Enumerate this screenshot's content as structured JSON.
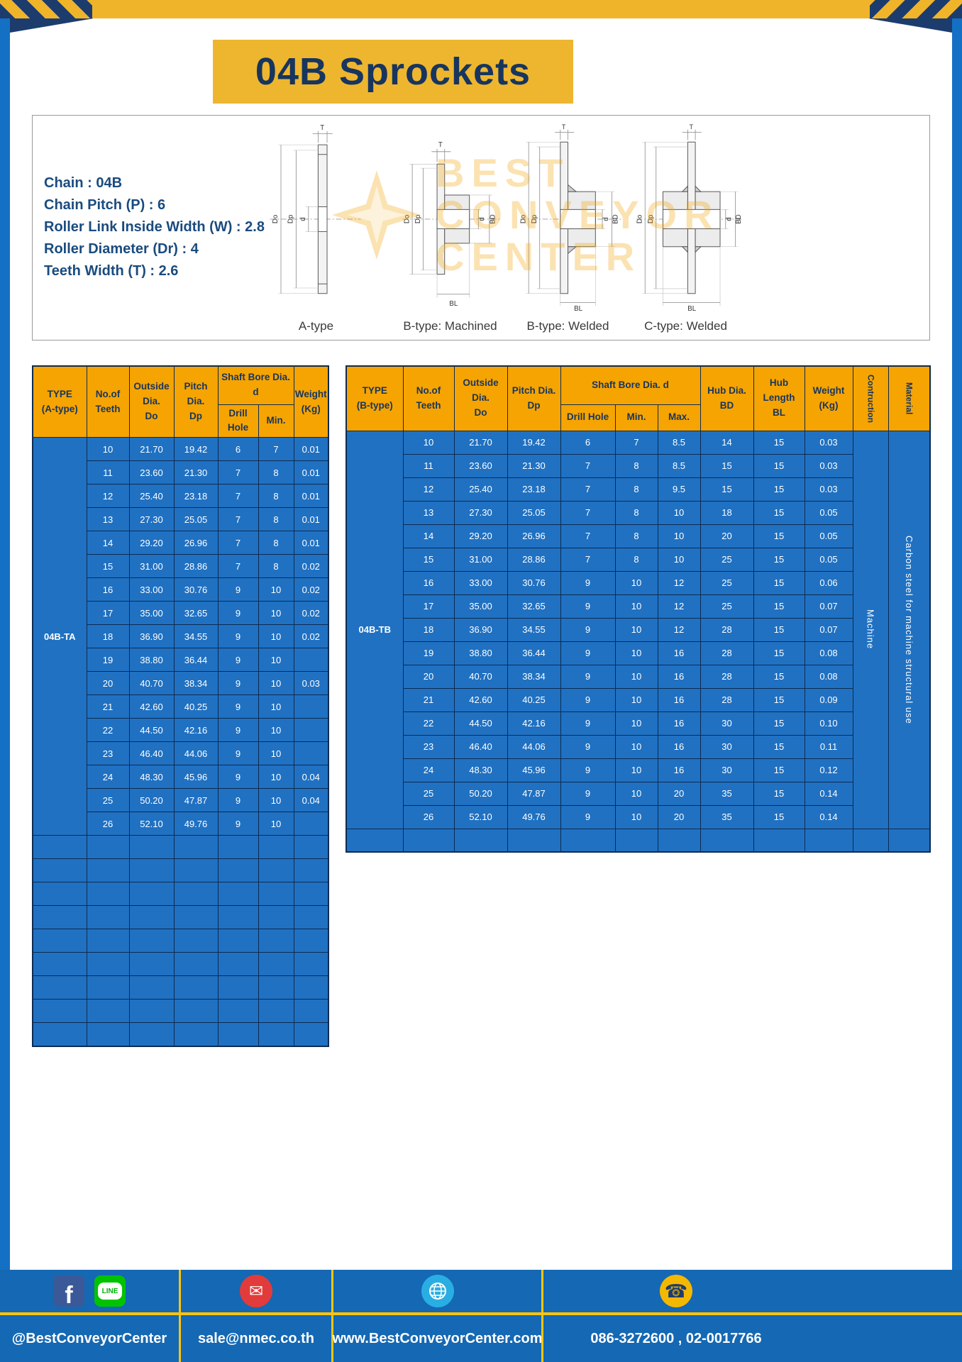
{
  "title": "04B Sprockets",
  "specs": {
    "lines": [
      "Chain : 04B",
      "Chain Pitch (P) : 6",
      "Roller Link Inside Width (W) : 2.8",
      "Roller Diameter (Dr) : 4",
      "Teeth Width (T) : 2.6"
    ]
  },
  "diagrams": {
    "labels": [
      "A-type",
      "B-type: Machined",
      "B-type: Welded",
      "C-type: Welded"
    ],
    "dims": {
      "t": "T",
      "do": "Do",
      "dp": "Dp",
      "d": "d",
      "bd": "BD",
      "bl": "BL"
    }
  },
  "watermark": {
    "line1": "BEST",
    "line2": "CONVEYOR",
    "line3": "CENTER"
  },
  "table_a": {
    "type_header": "TYPE\n(A-type)",
    "type_value": "04B-TA",
    "col_teeth": "No.of\nTeeth",
    "col_outside": "Outside\nDia.\nDo",
    "col_pitch": "Pitch Dia.\nDp",
    "col_shaft_group": "Shaft Bore Dia. d",
    "col_drill": "Drill Hole",
    "col_min": "Min.",
    "col_weight": "Weight\n(Kg)",
    "rows": [
      [
        "10",
        "21.70",
        "19.42",
        "6",
        "7",
        "0.01"
      ],
      [
        "11",
        "23.60",
        "21.30",
        "7",
        "8",
        "0.01"
      ],
      [
        "12",
        "25.40",
        "23.18",
        "7",
        "8",
        "0.01"
      ],
      [
        "13",
        "27.30",
        "25.05",
        "7",
        "8",
        "0.01"
      ],
      [
        "14",
        "29.20",
        "26.96",
        "7",
        "8",
        "0.01"
      ],
      [
        "15",
        "31.00",
        "28.86",
        "7",
        "8",
        "0.02"
      ],
      [
        "16",
        "33.00",
        "30.76",
        "9",
        "10",
        "0.02"
      ],
      [
        "17",
        "35.00",
        "32.65",
        "9",
        "10",
        "0.02"
      ],
      [
        "18",
        "36.90",
        "34.55",
        "9",
        "10",
        "0.02"
      ],
      [
        "19",
        "38.80",
        "36.44",
        "9",
        "10",
        ""
      ],
      [
        "20",
        "40.70",
        "38.34",
        "9",
        "10",
        "0.03"
      ],
      [
        "21",
        "42.60",
        "40.25",
        "9",
        "10",
        ""
      ],
      [
        "22",
        "44.50",
        "42.16",
        "9",
        "10",
        ""
      ],
      [
        "23",
        "46.40",
        "44.06",
        "9",
        "10",
        ""
      ],
      [
        "24",
        "48.30",
        "45.96",
        "9",
        "10",
        "0.04"
      ],
      [
        "25",
        "50.20",
        "47.87",
        "9",
        "10",
        "0.04"
      ],
      [
        "26",
        "52.10",
        "49.76",
        "9",
        "10",
        ""
      ]
    ],
    "empty_rows": 9
  },
  "table_b": {
    "type_header": "TYPE\n(B-type)",
    "type_value": "04B-TB",
    "col_teeth": "No.of\nTeeth",
    "col_outside": "Outside\nDia.\nDo",
    "col_pitch": "Pitch Dia.\nDp",
    "col_shaft_group": "Shaft Bore Dia. d",
    "col_drill": "Drill Hole",
    "col_min": "Min.",
    "col_max": "Max.",
    "col_hub_dia": "Hub Dia.\nBD",
    "col_hub_len": "Hub\nLength\nBL",
    "col_weight": "Weight\n(Kg)",
    "col_construction": "Contruction",
    "col_material": "Material",
    "construction_value": "Machine",
    "material_value": "Carbon steel for machine structural use",
    "rows": [
      [
        "10",
        "21.70",
        "19.42",
        "6",
        "7",
        "8.5",
        "14",
        "15",
        "0.03"
      ],
      [
        "11",
        "23.60",
        "21.30",
        "7",
        "8",
        "8.5",
        "15",
        "15",
        "0.03"
      ],
      [
        "12",
        "25.40",
        "23.18",
        "7",
        "8",
        "9.5",
        "15",
        "15",
        "0.03"
      ],
      [
        "13",
        "27.30",
        "25.05",
        "7",
        "8",
        "10",
        "18",
        "15",
        "0.05"
      ],
      [
        "14",
        "29.20",
        "26.96",
        "7",
        "8",
        "10",
        "20",
        "15",
        "0.05"
      ],
      [
        "15",
        "31.00",
        "28.86",
        "7",
        "8",
        "10",
        "25",
        "15",
        "0.05"
      ],
      [
        "16",
        "33.00",
        "30.76",
        "9",
        "10",
        "12",
        "25",
        "15",
        "0.06"
      ],
      [
        "17",
        "35.00",
        "32.65",
        "9",
        "10",
        "12",
        "25",
        "15",
        "0.07"
      ],
      [
        "18",
        "36.90",
        "34.55",
        "9",
        "10",
        "12",
        "28",
        "15",
        "0.07"
      ],
      [
        "19",
        "38.80",
        "36.44",
        "9",
        "10",
        "16",
        "28",
        "15",
        "0.08"
      ],
      [
        "20",
        "40.70",
        "38.34",
        "9",
        "10",
        "16",
        "28",
        "15",
        "0.08"
      ],
      [
        "21",
        "42.60",
        "40.25",
        "9",
        "10",
        "16",
        "28",
        "15",
        "0.09"
      ],
      [
        "22",
        "44.50",
        "42.16",
        "9",
        "10",
        "16",
        "30",
        "15",
        "0.10"
      ],
      [
        "23",
        "46.40",
        "44.06",
        "9",
        "10",
        "16",
        "30",
        "15",
        "0.11"
      ],
      [
        "24",
        "48.30",
        "45.96",
        "9",
        "10",
        "16",
        "30",
        "15",
        "0.12"
      ],
      [
        "25",
        "50.20",
        "47.87",
        "9",
        "10",
        "20",
        "35",
        "15",
        "0.14"
      ],
      [
        "26",
        "52.10",
        "49.76",
        "9",
        "10",
        "20",
        "35",
        "15",
        "0.14"
      ]
    ]
  },
  "footer": {
    "sections": [
      {
        "label": "@BestConveyorCenter"
      },
      {
        "label": "sale@nmec.co.th"
      },
      {
        "label": "www.BestConveyorCenter.com"
      },
      {
        "label": "086-3272600 , 02-0017766"
      }
    ],
    "fb_letter": "f",
    "line_text": "LINE",
    "email_glyph": "✉",
    "phone_glyph": "☎"
  },
  "colors": {
    "accent_gold": "#F5A402",
    "title_gold": "#EEB62F",
    "table_blue": "#2071C2",
    "navy": "#17355E",
    "footer_blue": "#1568B3",
    "frame_blue": "#1470C4"
  }
}
